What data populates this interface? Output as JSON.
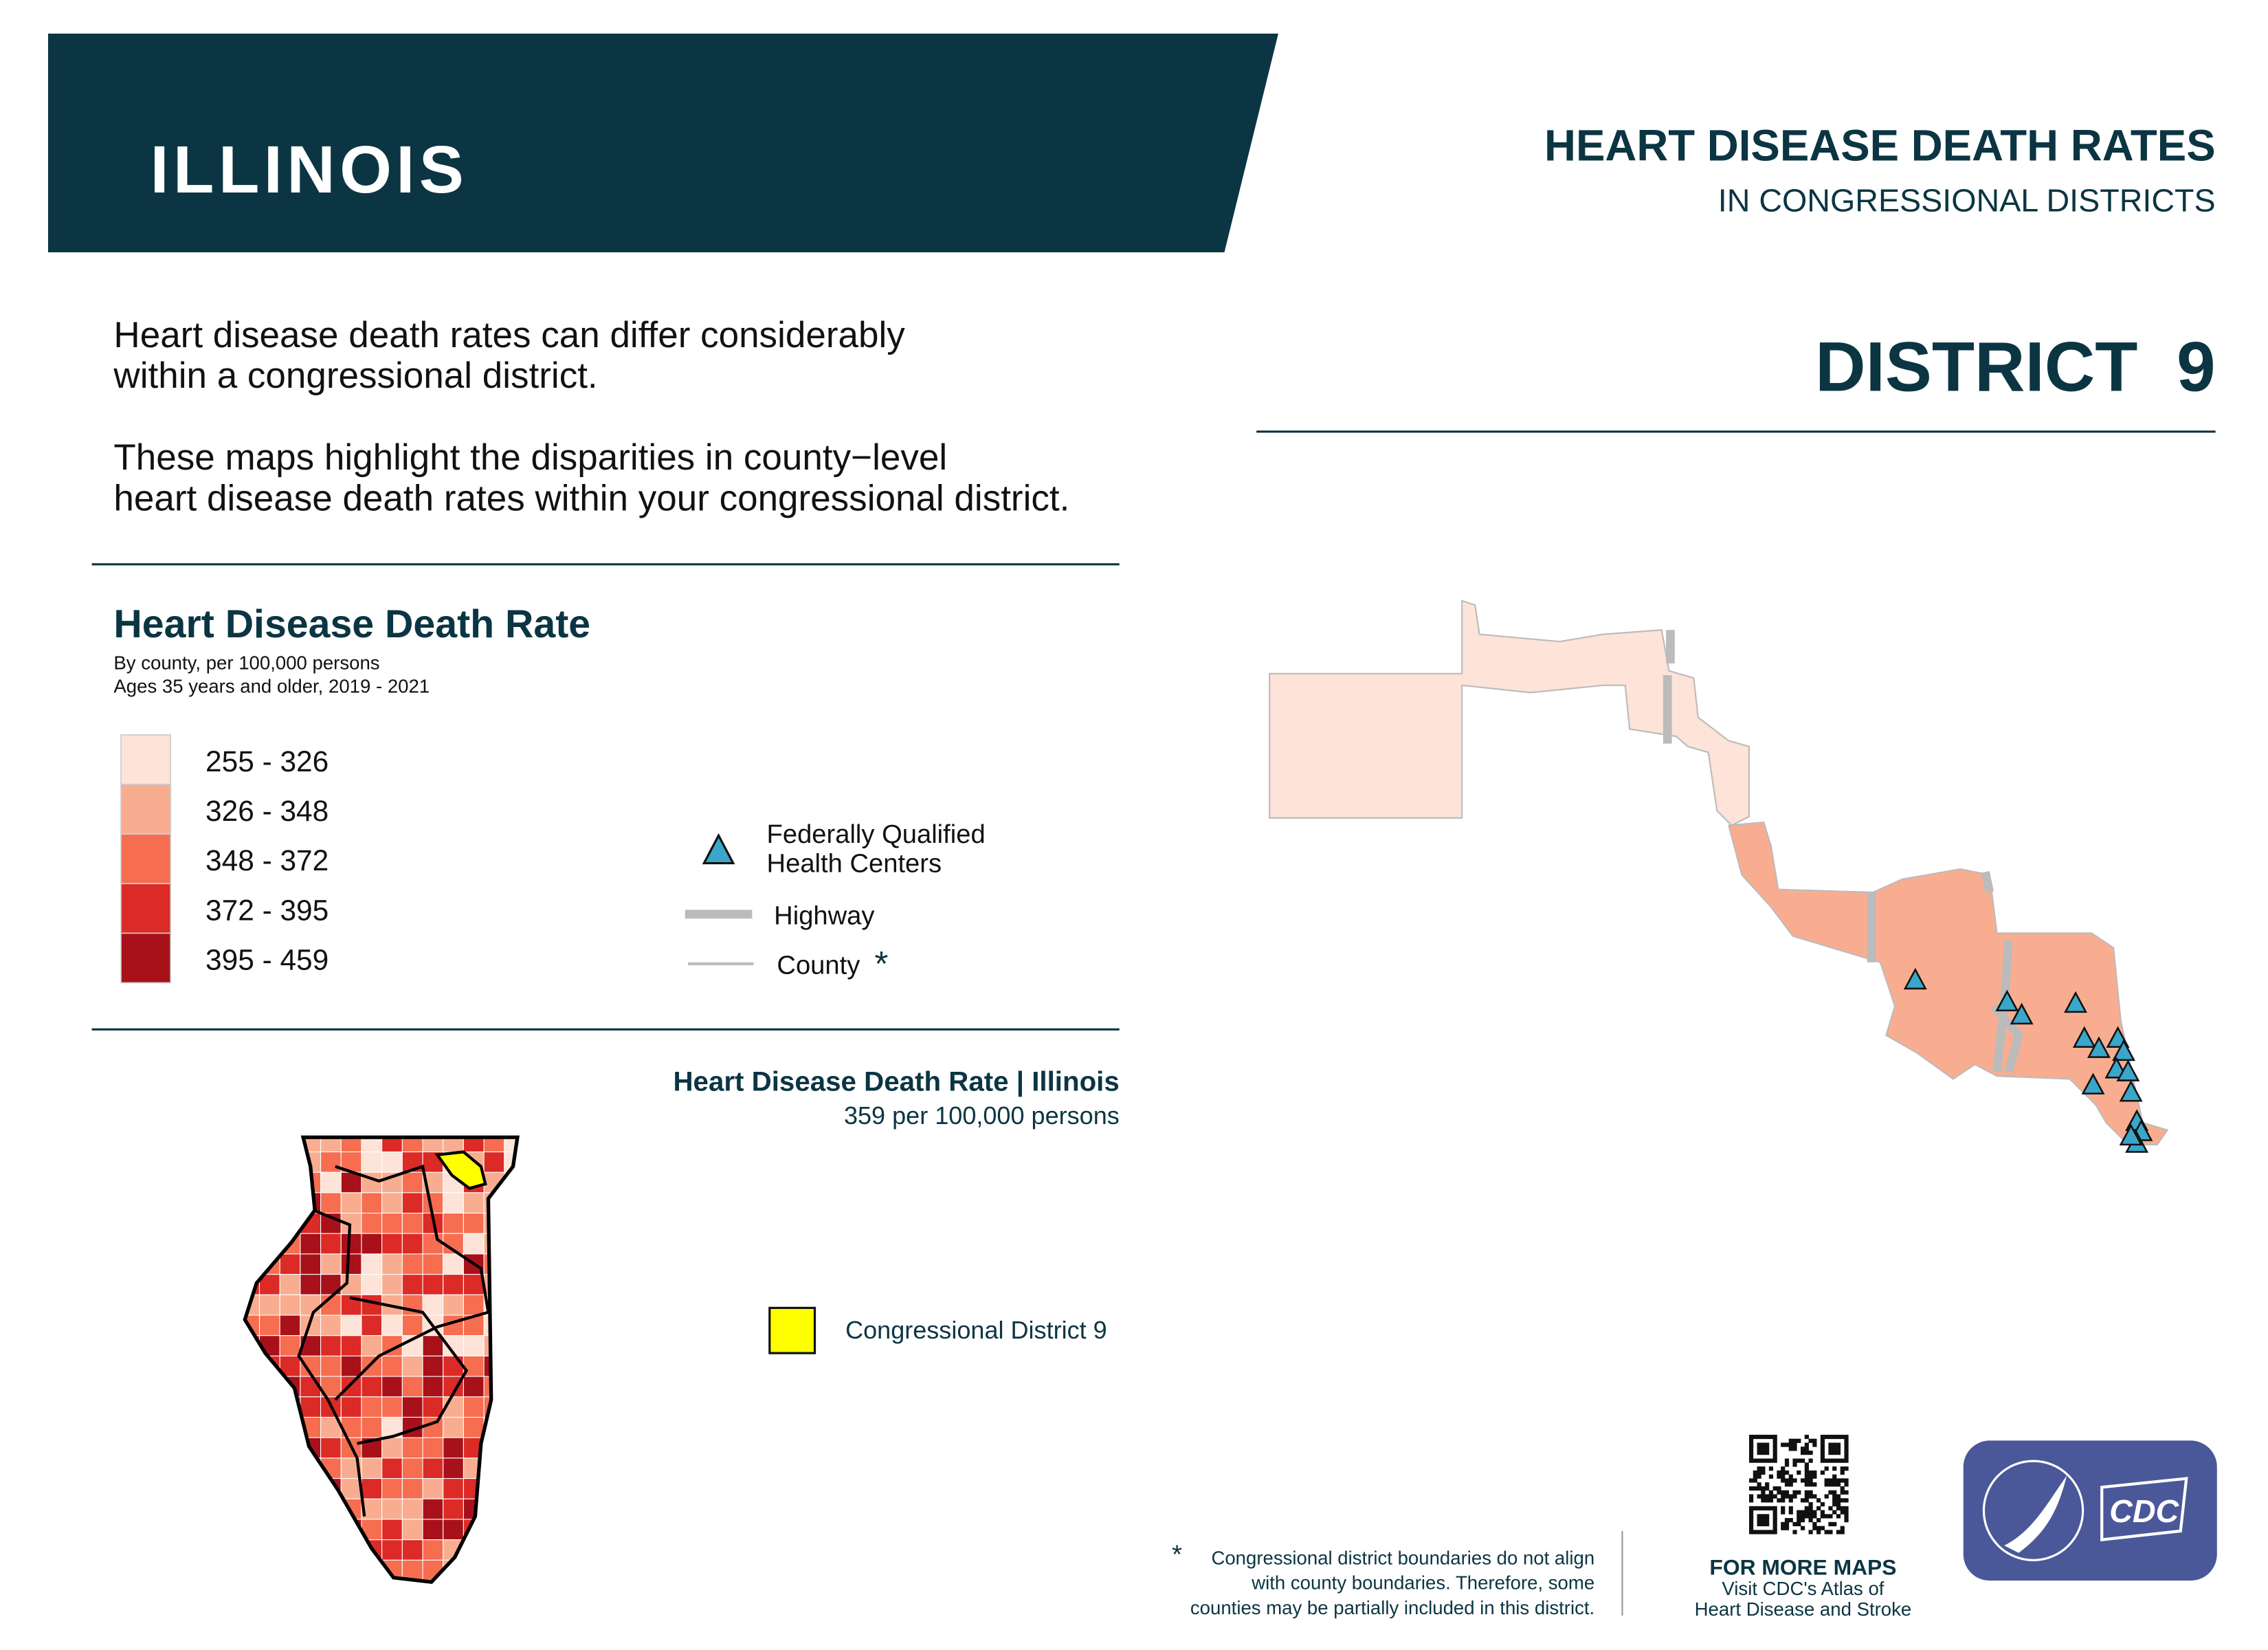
{
  "header": {
    "state": "ILLINOIS",
    "title": "HEART DISEASE DEATH RATES",
    "subtitle": "IN CONGRESSIONAL DISTRICTS",
    "district": "DISTRICT  9"
  },
  "intro": {
    "paragraph_1": [
      "Heart disease death rates can differ considerably",
      "within a congressional district."
    ],
    "paragraph_2": [
      "These maps highlight the disparities in county−level",
      "heart disease death rates within your congressional district."
    ]
  },
  "legend": {
    "title": "Heart Disease Death Rate",
    "subtitle_1": "By county, per 100,000 persons",
    "subtitle_2": "Ages 35 years and older, 2019 - 2021",
    "classes": [
      {
        "label": "255 - 326",
        "color": "#fde3d8"
      },
      {
        "label": "326 - 348",
        "color": "#f9ad90"
      },
      {
        "label": "348 - 372",
        "color": "#f66d50"
      },
      {
        "label": "372 - 395",
        "color": "#dc2a26"
      },
      {
        "label": "395 - 459",
        "color": "#a8111a"
      }
    ],
    "fqhc": [
      "Federally Qualified",
      "Health Centers"
    ],
    "highway": "Highway",
    "county": "County",
    "asterisk": "*"
  },
  "state_summary": {
    "title": "Heart Disease Death Rate | Illinois",
    "value": "359 per 100,000 persons",
    "district_label": "Congressional District 9"
  },
  "footer": {
    "asterisk": "*",
    "note": [
      "Congressional district boundaries do not align",
      "with county boundaries. Therefore, some",
      "counties may be partially included in this district."
    ],
    "more_maps": "FOR MORE MAPS",
    "visit": [
      "Visit CDC's Atlas of",
      "Heart Disease and Stroke"
    ],
    "logo": "CDC"
  }
}
